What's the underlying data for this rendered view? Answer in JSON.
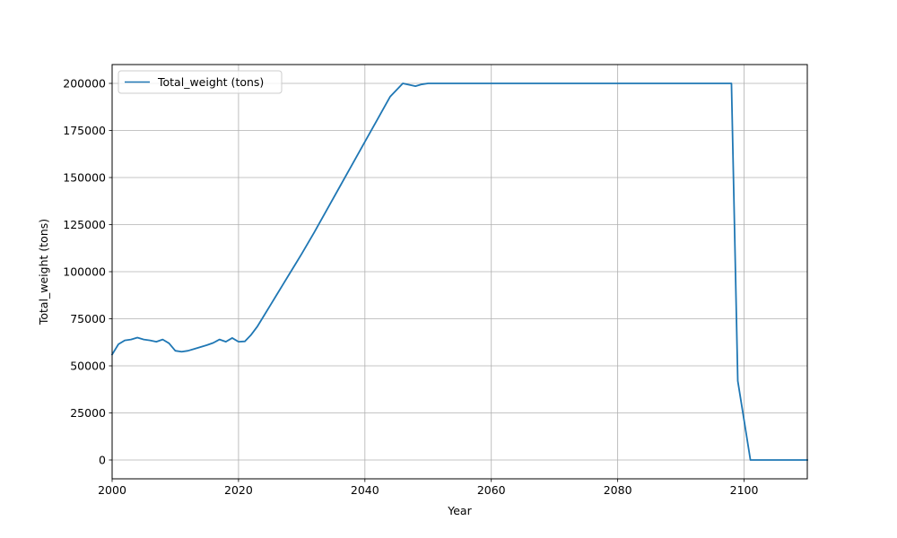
{
  "chart_data": {
    "type": "line",
    "title": "",
    "xlabel": "Year",
    "ylabel": "Total_weight (tons)",
    "xlim": [
      2000,
      2110
    ],
    "ylim": [
      -10000,
      210000
    ],
    "xticks": [
      2000,
      2020,
      2040,
      2060,
      2080,
      2100
    ],
    "yticks": [
      0,
      25000,
      50000,
      75000,
      100000,
      125000,
      150000,
      175000,
      200000
    ],
    "grid": true,
    "legend_position": "top-left",
    "series": [
      {
        "name": "Total_weight (tons)",
        "color": "#1f77b4",
        "x": [
          2000,
          2001,
          2002,
          2003,
          2004,
          2005,
          2006,
          2007,
          2008,
          2009,
          2010,
          2011,
          2012,
          2013,
          2014,
          2015,
          2016,
          2017,
          2018,
          2019,
          2020,
          2021,
          2022,
          2023,
          2024,
          2025,
          2026,
          2027,
          2028,
          2029,
          2030,
          2032,
          2034,
          2036,
          2038,
          2040,
          2042,
          2044,
          2046,
          2048,
          2049,
          2050,
          2060,
          2070,
          2080,
          2090,
          2098,
          2099,
          2100,
          2101,
          2110
        ],
        "y": [
          56000,
          61500,
          63500,
          64000,
          65000,
          64000,
          63500,
          62800,
          64000,
          62000,
          58000,
          57500,
          58000,
          59000,
          60000,
          61000,
          62200,
          64000,
          62800,
          64800,
          62800,
          63000,
          66500,
          71000,
          76500,
          82000,
          87500,
          93000,
          98500,
          104000,
          109500,
          121000,
          133000,
          145000,
          157000,
          169000,
          181000,
          193000,
          205000,
          198500,
          199500,
          200000,
          200000,
          200000,
          200000,
          200000,
          200000,
          42000,
          21000,
          0,
          0
        ]
      }
    ]
  }
}
